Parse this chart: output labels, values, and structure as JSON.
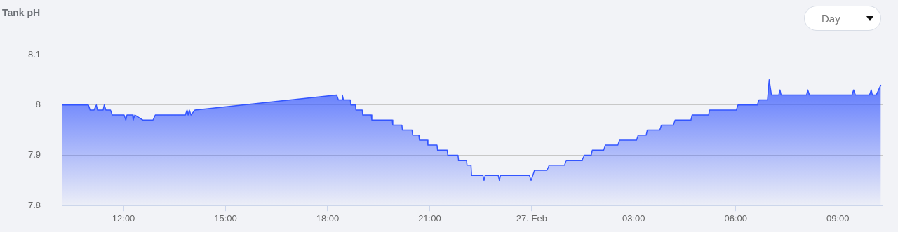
{
  "chart_data": {
    "type": "area",
    "title": "Tank pH",
    "annotations": [
      "Day"
    ],
    "x": [
      "--02-26T10:11",
      "--02-26T10:58",
      "--02-26T11:01",
      "--02-26T11:08",
      "--02-26T11:12",
      "--02-26T11:14",
      "--02-26T11:24",
      "--02-26T11:26",
      "--02-26T11:29",
      "--02-26T11:37",
      "--02-26T11:40",
      "--02-26T12:01",
      "--02-26T12:04",
      "--02-26T12:06",
      "--02-26T12:16",
      "--02-26T12:17",
      "--02-26T12:20",
      "--02-26T12:34",
      "--02-26T12:52",
      "--02-26T12:56",
      "--02-26T13:49",
      "--02-26T13:52",
      "--02-26T13:54",
      "--02-26T13:56",
      "--02-26T13:59",
      "--02-26T14:06",
      "--02-26T18:16",
      "--02-26T18:19",
      "--02-26T18:25",
      "--02-26T18:26",
      "--02-26T18:28",
      "--02-26T18:40",
      "--02-26T18:41",
      "--02-26T18:49",
      "--02-26T18:50",
      "--02-26T19:01",
      "--02-26T19:02",
      "--02-26T19:17",
      "--02-26T19:18",
      "--02-26T19:54",
      "--02-26T19:55",
      "--02-26T20:11",
      "--02-26T20:12",
      "--02-26T20:29",
      "--02-26T20:30",
      "--02-26T20:41",
      "--02-26T20:42",
      "--02-26T20:56",
      "--02-26T20:57",
      "--02-26T21:13",
      "--02-26T21:14",
      "--02-26T21:31",
      "--02-26T21:32",
      "--02-26T21:50",
      "--02-26T21:51",
      "--02-26T22:05",
      "--02-26T22:06",
      "--02-26T22:13",
      "--02-26T22:14",
      "--02-26T22:34",
      "--02-26T22:36",
      "--02-26T22:38",
      "--02-26T23:01",
      "--02-26T23:03",
      "--02-26T23:05",
      "--02-26T23:56",
      "--02-26T23:59",
      "--02-27T00:02",
      "--02-27T00:05",
      "--02-27T00:27",
      "--02-27T00:31",
      "--02-27T00:58",
      "--02-27T01:01",
      "--02-27T01:29",
      "--02-27T01:33",
      "--02-27T01:45",
      "--02-27T01:47",
      "--02-27T02:07",
      "--02-27T02:10",
      "--02-27T02:32",
      "--02-27T02:35",
      "--02-27T03:05",
      "--02-27T03:08",
      "--02-27T03:22",
      "--02-27T03:24",
      "--02-27T03:46",
      "--02-27T03:49",
      "--02-27T04:10",
      "--02-27T04:13",
      "--02-27T04:41",
      "--02-27T04:43",
      "--02-27T05:12",
      "--02-27T05:14",
      "--02-27T06:01",
      "--02-27T06:04",
      "--02-27T06:38",
      "--02-27T06:41",
      "--02-27T06:56",
      "--02-27T06:59",
      "--02-27T07:03",
      "--02-27T07:16",
      "--02-27T07:18",
      "--02-27T07:20",
      "--02-27T08:05",
      "--02-27T08:07",
      "--02-27T08:10",
      "--02-27T09:25",
      "--02-27T09:28",
      "--02-27T09:31",
      "--02-27T09:56",
      "--02-27T09:59",
      "--02-27T10:01",
      "--02-27T10:08",
      "--02-27T10:16"
    ],
    "series": [
      {
        "color": "#3355ff",
        "values": [
          8.0,
          8.0,
          7.99,
          7.99,
          8.0,
          7.99,
          7.99,
          8.0,
          7.99,
          7.99,
          7.98,
          7.98,
          7.97,
          7.98,
          7.98,
          7.97,
          7.98,
          7.97,
          7.97,
          7.98,
          7.98,
          7.99,
          7.98,
          7.99,
          7.98,
          7.99,
          8.02,
          8.01,
          8.01,
          8.02,
          8.01,
          8.01,
          8.0,
          8.0,
          7.99,
          7.99,
          7.98,
          7.98,
          7.97,
          7.97,
          7.96,
          7.96,
          7.95,
          7.95,
          7.94,
          7.94,
          7.93,
          7.93,
          7.92,
          7.92,
          7.91,
          7.91,
          7.9,
          7.9,
          7.89,
          7.89,
          7.88,
          7.88,
          7.86,
          7.86,
          7.85,
          7.86,
          7.86,
          7.85,
          7.86,
          7.86,
          7.85,
          7.86,
          7.87,
          7.87,
          7.88,
          7.88,
          7.89,
          7.89,
          7.9,
          7.9,
          7.91,
          7.91,
          7.92,
          7.92,
          7.93,
          7.93,
          7.94,
          7.94,
          7.95,
          7.95,
          7.96,
          7.96,
          7.97,
          7.97,
          7.98,
          7.98,
          7.99,
          7.99,
          8.0,
          8.0,
          8.01,
          8.01,
          8.05,
          8.02,
          8.02,
          8.03,
          8.02,
          8.02,
          8.03,
          8.02,
          8.02,
          8.03,
          8.02,
          8.02,
          8.03,
          8.02,
          8.02,
          8.04
        ]
      }
    ],
    "xlim": [
      "--02-26T10:11",
      "--02-27T10:19"
    ],
    "xticks": [
      {
        "value": "--02-26T12:00",
        "label": "12:00"
      },
      {
        "value": "--02-26T15:00",
        "label": "15:00"
      },
      {
        "value": "--02-26T18:00",
        "label": "18:00"
      },
      {
        "value": "--02-26T21:00",
        "label": "21:00"
      },
      {
        "value": "--02-27T00:00",
        "label": "27. Feb"
      },
      {
        "value": "--02-27T03:00",
        "label": "03:00"
      },
      {
        "value": "--02-27T06:00",
        "label": "06:00"
      },
      {
        "value": "--02-27T09:00",
        "label": "09:00"
      }
    ],
    "ylim": [
      7.8,
      8.1
    ],
    "yticks": [
      7.8,
      7.9,
      8,
      8.1
    ],
    "grid": "y",
    "legend": false
  }
}
